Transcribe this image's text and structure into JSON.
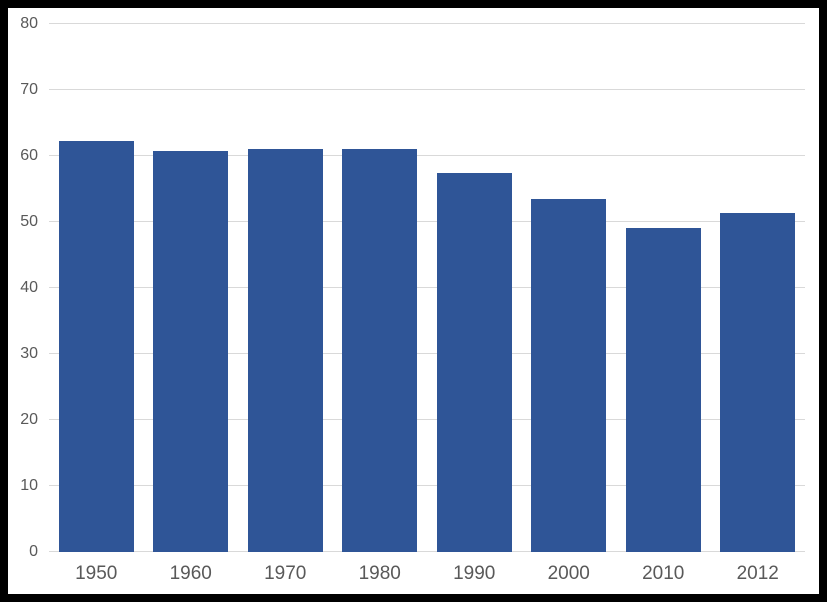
{
  "chart_data": {
    "type": "bar",
    "title": "",
    "xlabel": "",
    "ylabel": "",
    "categories": [
      "1950",
      "1960",
      "1970",
      "1980",
      "1990",
      "2000",
      "2010",
      "2012"
    ],
    "values": [
      62.3,
      60.8,
      61.0,
      61.0,
      57.4,
      53.5,
      49.1,
      51.4
    ],
    "ylim": [
      0,
      80
    ],
    "yticks": [
      0,
      10,
      20,
      30,
      40,
      50,
      60,
      70,
      80
    ],
    "grid": true,
    "legend": "none",
    "colors": {
      "bar": "#2F5597",
      "gridline": "#D9D9D9",
      "axis_text": "#595959",
      "plot_background": "#FFFFFF",
      "frame": "#000000"
    }
  }
}
